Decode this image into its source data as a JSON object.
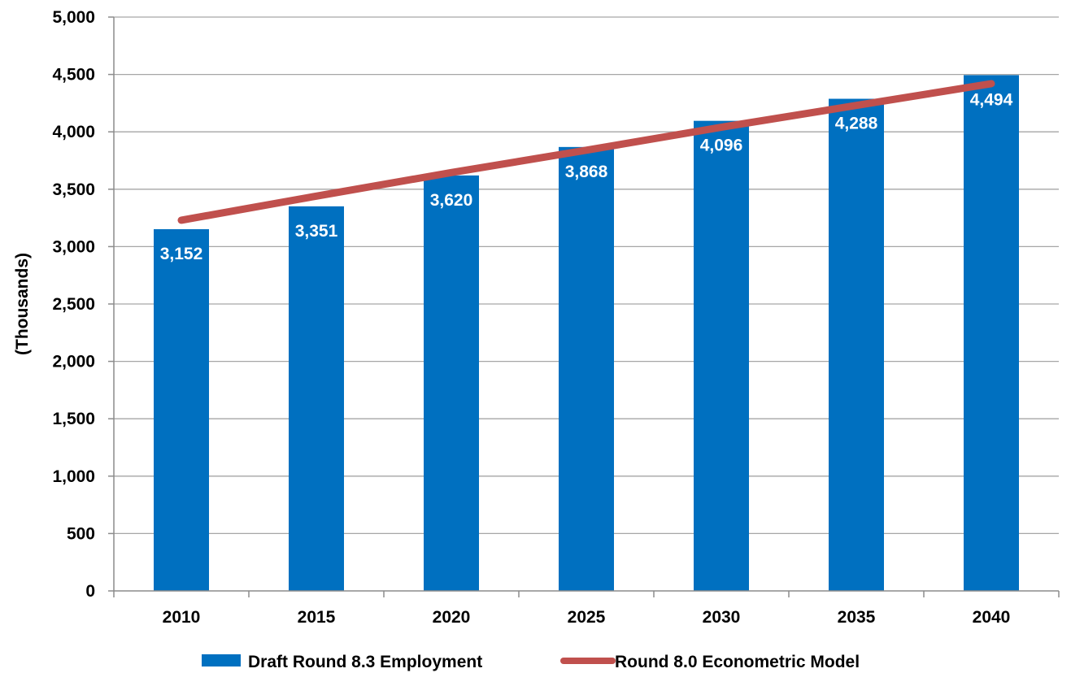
{
  "chart_data": {
    "type": "bar",
    "title": "",
    "xlabel": "",
    "ylabel": "(Thousands)",
    "categories": [
      "2010",
      "2015",
      "2020",
      "2025",
      "2030",
      "2035",
      "2040"
    ],
    "ylim": [
      0,
      5000
    ],
    "yticks": [
      0,
      500,
      1000,
      1500,
      2000,
      2500,
      3000,
      3500,
      4000,
      4500,
      5000
    ],
    "ytick_labels": [
      "0",
      "500",
      "1,000",
      "1,500",
      "2,000",
      "2,500",
      "3,000",
      "3,500",
      "4,000",
      "4,500",
      "5,000"
    ],
    "grid": true,
    "legend_position": "bottom",
    "series": [
      {
        "name": "Draft Round 8.3 Employment",
        "type": "bar",
        "color": "#0070C0",
        "values": [
          3152,
          3351,
          3620,
          3868,
          4096,
          4288,
          4494
        ],
        "labels": [
          "3,152",
          "3,351",
          "3,620",
          "3,868",
          "4,096",
          "4,288",
          "4,494"
        ]
      },
      {
        "name": "Round 8.0 Econometric Model",
        "type": "line",
        "color": "#C0504D",
        "values": [
          3230,
          3440,
          3645,
          3840,
          4040,
          4230,
          4420
        ]
      }
    ]
  }
}
